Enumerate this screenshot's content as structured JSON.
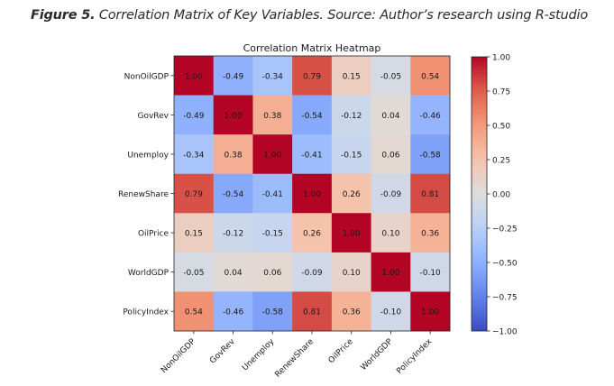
{
  "caption": {
    "label": "Figure 5.",
    "text": " Correlation Matrix of Key Variables. Source: Author’s research using R-studio"
  },
  "chart_data": {
    "type": "heatmap",
    "title": "Correlation Matrix Heatmap",
    "xlabel": "",
    "ylabel": "",
    "x_labels": [
      "NonOilGDP",
      "GovRev",
      "Unemploy",
      "RenewShare",
      "OilPrice",
      "WorldGDP",
      "PolicyIndex"
    ],
    "y_labels": [
      "NonOilGDP",
      "GovRev",
      "Unemploy",
      "RenewShare",
      "OilPrice",
      "WorldGDP",
      "PolicyIndex"
    ],
    "values": [
      [
        1.0,
        -0.49,
        -0.34,
        0.79,
        0.15,
        -0.05,
        0.54
      ],
      [
        -0.49,
        1.0,
        0.38,
        -0.54,
        -0.12,
        0.04,
        -0.46
      ],
      [
        -0.34,
        0.38,
        1.0,
        -0.41,
        -0.15,
        0.06,
        -0.58
      ],
      [
        0.79,
        -0.54,
        -0.41,
        1.0,
        0.26,
        -0.09,
        0.81
      ],
      [
        0.15,
        -0.12,
        -0.15,
        0.26,
        1.0,
        0.1,
        0.36
      ],
      [
        -0.05,
        0.04,
        0.06,
        -0.09,
        0.1,
        1.0,
        -0.1
      ],
      [
        0.54,
        -0.46,
        -0.58,
        0.81,
        0.36,
        -0.1,
        1.0
      ]
    ],
    "value_format": "0.00",
    "colormap": "coolwarm",
    "vmin": -1.0,
    "vmax": 1.0,
    "colorbar": {
      "ticks": [
        1.0,
        0.75,
        0.5,
        0.25,
        0.0,
        -0.25,
        -0.5,
        -0.75,
        -1.0
      ],
      "tick_labels": [
        "1.00",
        "0.75",
        "0.50",
        "0.25",
        "0.00",
        "−0.25",
        "−0.50",
        "−0.75",
        "−1.00"
      ],
      "placement": "right"
    },
    "x_tick_rotation_deg": 45,
    "grid": false
  }
}
